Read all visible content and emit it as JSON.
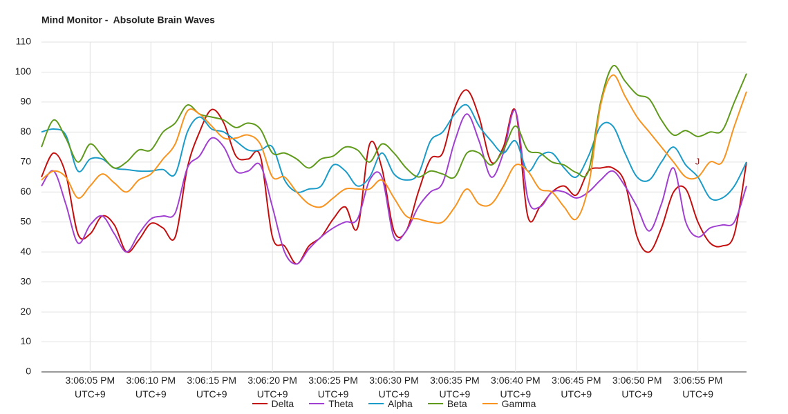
{
  "chart_data": {
    "type": "line",
    "title": "Mind Monitor -  Absolute Brain Waves",
    "annotation": "J",
    "categories": [
      null,
      null,
      null,
      null,
      "3:06:05 PM UTC+9",
      null,
      null,
      null,
      null,
      "3:06:10 PM UTC+9",
      null,
      null,
      null,
      null,
      "3:06:15 PM UTC+9",
      null,
      null,
      null,
      null,
      "3:06:20 PM UTC+9",
      null,
      null,
      null,
      null,
      "3:06:25 PM UTC+9",
      null,
      null,
      null,
      null,
      "3:06:30 PM UTC+9",
      null,
      null,
      null,
      null,
      "3:06:35 PM UTC+9",
      null,
      null,
      null,
      null,
      "3:06:40 PM UTC+9",
      null,
      null,
      null,
      null,
      "3:06:45 PM UTC+9",
      null,
      null,
      null,
      null,
      "3:06:50 PM UTC+9",
      null,
      null,
      null,
      null,
      "3:06:55 PM UTC+9",
      null,
      null,
      null,
      null
    ],
    "series": [
      {
        "name": "Delta",
        "color": "#c40e0e",
        "values": [
          65,
          73,
          66,
          46,
          46,
          52,
          49,
          40,
          44,
          49.5,
          48,
          45,
          68,
          80,
          87.5,
          83,
          72,
          71,
          72,
          45,
          42,
          36,
          42,
          45,
          51,
          55,
          48,
          76,
          68,
          47,
          47,
          60,
          71,
          73,
          88,
          94,
          85,
          70,
          75,
          87,
          52,
          55,
          60,
          62,
          59,
          67,
          68,
          68,
          63,
          45,
          40,
          48,
          60,
          61,
          50,
          43,
          42,
          46,
          70
        ]
      },
      {
        "name": "Theta",
        "color": "#a03fd0",
        "values": [
          62,
          67,
          56,
          43,
          49,
          52,
          46,
          40,
          46,
          51,
          52,
          53,
          68,
          72,
          78,
          75,
          67,
          67,
          69,
          55,
          40,
          36,
          41,
          45,
          48,
          50,
          51,
          64,
          65,
          45,
          47,
          55,
          60,
          63,
          77,
          86,
          77,
          65,
          73,
          87,
          58,
          55,
          60,
          60,
          58,
          60,
          64,
          67,
          62,
          55,
          47,
          56,
          68,
          50,
          45,
          48,
          49,
          50,
          62
        ]
      },
      {
        "name": "Alpha",
        "color": "#1a9bc8",
        "values": [
          80,
          81,
          79,
          67,
          71,
          71,
          68,
          67.5,
          67,
          67,
          67.5,
          66,
          80,
          85,
          81,
          80,
          77,
          74,
          74,
          75,
          64,
          60,
          61,
          62,
          69,
          67,
          62,
          65,
          73,
          66,
          64,
          66,
          77,
          80,
          86,
          89,
          82,
          77,
          73,
          77,
          67,
          72,
          73,
          68,
          65,
          72,
          82,
          82,
          73,
          65,
          64,
          70,
          75,
          69,
          65,
          58,
          58,
          62,
          70
        ]
      },
      {
        "name": "Beta",
        "color": "#5f9a1c",
        "values": [
          75,
          84,
          78,
          70,
          76,
          72,
          68,
          70,
          74,
          74,
          80,
          83,
          89,
          86,
          85,
          84,
          81.5,
          83,
          81,
          73,
          73,
          71,
          68,
          71,
          72,
          75,
          74,
          70,
          76,
          73,
          68,
          65,
          67,
          66,
          65,
          73,
          73,
          69,
          74,
          82,
          74,
          73,
          70,
          69,
          66.5,
          67,
          90,
          102,
          97,
          92.5,
          91,
          84,
          79,
          80.5,
          78.5,
          80,
          80.5,
          90,
          99.5
        ]
      },
      {
        "name": "Gamma",
        "color": "#f7931e",
        "values": [
          64,
          67,
          65,
          58,
          62,
          66,
          63,
          60,
          64,
          66,
          71,
          76,
          87,
          86,
          82,
          78,
          78,
          79,
          76,
          65,
          65,
          60,
          56,
          55,
          58,
          61,
          61,
          61,
          64,
          58,
          52,
          51,
          50,
          50,
          55,
          61,
          56,
          56,
          62,
          69,
          67,
          61,
          60,
          55,
          51,
          62,
          89,
          99,
          92,
          85,
          80,
          75,
          70,
          65,
          65,
          70,
          70,
          82,
          93.5
        ]
      }
    ],
    "ylim": [
      0,
      110
    ],
    "yticks": [
      0,
      10,
      20,
      30,
      40,
      50,
      60,
      70,
      80,
      90,
      100,
      110
    ],
    "grid": true
  }
}
